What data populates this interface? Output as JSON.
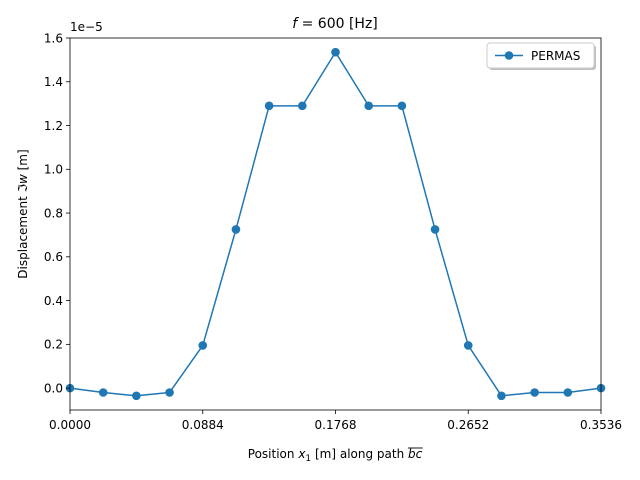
{
  "chart_data": {
    "type": "line",
    "title": "f = 600 [Hz]",
    "title_parts": {
      "var": "f",
      "rest": " = 600 [Hz]"
    },
    "xlabel": "Position x1 [m] along path bc",
    "xlabel_parts": {
      "pre": "Position ",
      "var": "x",
      "sub": "1",
      "mid": " [m] along path ",
      "path": "bc"
    },
    "ylabel": "Displacement ℑw [m]",
    "ylabel_parts": {
      "pre": "Displacement ",
      "var": "ℑw",
      "post": " [m]"
    },
    "y_multiplier": "1e−5",
    "xlim": [
      0,
      0.3536
    ],
    "ylim": [
      -0.1,
      1.6
    ],
    "x_ticks": [
      0,
      0.0884,
      0.1768,
      0.2652,
      0.3536
    ],
    "x_tick_labels": [
      "0.0000",
      "0.0884",
      "0.1768",
      "0.2652",
      "0.3536"
    ],
    "y_ticks": [
      0,
      0.2,
      0.4,
      0.6,
      0.8,
      1.0,
      1.2,
      1.4,
      1.6
    ],
    "y_tick_labels": [
      "0.0",
      "0.2",
      "0.4",
      "0.6",
      "0.8",
      "1.0",
      "1.2",
      "1.4",
      "1.6"
    ],
    "legend_position": "top-right",
    "series": [
      {
        "name": "PERMAS",
        "color": "#1f77b4",
        "marker": "circle",
        "x": [
          0,
          0.0221,
          0.0442,
          0.0663,
          0.0884,
          0.1105,
          0.1326,
          0.1547,
          0.1768,
          0.1989,
          0.221,
          0.2431,
          0.2652,
          0.2873,
          0.3094,
          0.3315,
          0.3536
        ],
        "y": [
          0,
          -0.02,
          -0.035,
          -0.02,
          0.195,
          0.725,
          1.29,
          1.29,
          1.535,
          1.29,
          1.29,
          0.725,
          0.195,
          -0.035,
          -0.02,
          -0.02,
          0
        ]
      }
    ]
  }
}
